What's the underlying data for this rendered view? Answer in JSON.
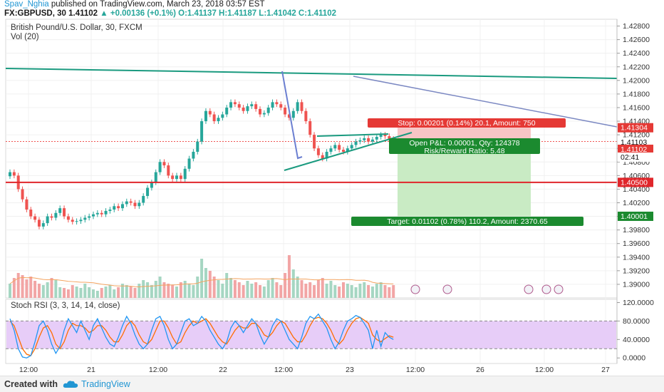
{
  "header": {
    "author": "Spav_Nghia",
    "published": "published on TradingView.com, March 23, 2018 03:57 EST",
    "symbol": "FX:GBPUSD, 30",
    "last": "1.41102",
    "change": "+0.00136 (+0.1%)",
    "ohlc": "O:1.41137 H:1.41187 L:1.41042 C:1.41102"
  },
  "legend": {
    "title": "British Pound/U.S. Dollar, 30, FXCM",
    "volume": "Vol (20)",
    "stoch": "Stoch RSI (3, 3, 14, 14, close)"
  },
  "footer": {
    "created": "Created with",
    "brand": "TradingView"
  },
  "colors": {
    "up": "#26a69a",
    "down": "#ef5350",
    "trend": "#1a9a7f",
    "support": "#e0262b",
    "stoch_fill": "#e7cdf8",
    "k_line": "#2196f3",
    "d_line": "#ff6d00",
    "profit_zone": "#c9ebc4",
    "stop_zone": "#f7c5c5",
    "vol_ma": "#f4a460"
  },
  "chart_data": [
    {
      "type": "candlestick",
      "title": "British Pound/U.S. Dollar, 30, FXCM",
      "ylim": [
        1.388,
        1.429
      ],
      "y_ticks": [
        "1.42800",
        "1.42600",
        "1.42400",
        "1.42200",
        "1.42000",
        "1.41800",
        "1.41600",
        "1.41400",
        "1.41200",
        "1.41000",
        "1.40800",
        "1.40600",
        "1.40400",
        "1.40200",
        "1.40000",
        "1.39800",
        "1.39600",
        "1.39400",
        "1.39200",
        "1.39000"
      ],
      "x_ticks": [
        "12:00",
        "21",
        "12:00",
        "22",
        "12:00",
        "23",
        "12:00",
        "26",
        "12:00",
        "27"
      ],
      "closes": [
        1.4065,
        1.406,
        1.404,
        1.4025,
        1.401,
        1.4,
        1.3995,
        1.3985,
        1.399,
        1.4,
        1.3998,
        1.4005,
        1.4012,
        1.4,
        1.3995,
        1.3992,
        1.3993,
        1.3995,
        1.3998,
        1.4,
        1.4003,
        1.4005,
        1.4003,
        1.4008,
        1.401,
        1.4015,
        1.4012,
        1.4018,
        1.4022,
        1.402,
        1.4015,
        1.402,
        1.403,
        1.4042,
        1.405,
        1.4065,
        1.408,
        1.4075,
        1.406,
        1.4055,
        1.406,
        1.4055,
        1.407,
        1.4085,
        1.4095,
        1.411,
        1.414,
        1.4155,
        1.415,
        1.414,
        1.4145,
        1.415,
        1.416,
        1.4168,
        1.4165,
        1.416,
        1.4155,
        1.4162,
        1.4165,
        1.4158,
        1.415,
        1.4152,
        1.416,
        1.4168,
        1.4165,
        1.416,
        1.415,
        1.4145,
        1.4155,
        1.4168,
        1.4155,
        1.414,
        1.412,
        1.41,
        1.409,
        1.4085,
        1.4095,
        1.41,
        1.4105,
        1.4098,
        1.4095,
        1.41,
        1.4105,
        1.411,
        1.4112,
        1.4115,
        1.411,
        1.4113,
        1.4117,
        1.412,
        1.4118,
        1.4114,
        1.411
      ],
      "annotations": {
        "stop": "Stop: 0.00201 (0.14%) 20.1, Amount: 750",
        "open": "Open P&L: 0.00001, Qty: 124378",
        "rr": "Risk/Reward Ratio: 5.48",
        "target": "Target: 0.01102 (0.78%) 110.2, Amount: 2370.65",
        "price_stop": "1.41304",
        "price_last": "1.41103",
        "price_entry": "1.41102",
        "countdown": "02:41",
        "price_support": "1.40500",
        "price_target": "1.40001",
        "stop_price": 1.41304,
        "entry_price": 1.41102,
        "support_price": 1.405,
        "target_price": 1.40001
      }
    },
    {
      "type": "bar",
      "title": "Vol (20)",
      "volumes": [
        20,
        28,
        35,
        32,
        26,
        30,
        24,
        20,
        18,
        22,
        28,
        25,
        15,
        14,
        12,
        18,
        16,
        14,
        20,
        15,
        12,
        10,
        14,
        16,
        18,
        12,
        15,
        20,
        18,
        16,
        14,
        20,
        25,
        22,
        18,
        24,
        30,
        22,
        20,
        18,
        16,
        22,
        24,
        20,
        18,
        30,
        55,
        42,
        38,
        30,
        25,
        20,
        35,
        28,
        25,
        22,
        18,
        24,
        20,
        22,
        18,
        16,
        25,
        28,
        22,
        18,
        35,
        60,
        40,
        30,
        25,
        20,
        22,
        18,
        25,
        28,
        20,
        24,
        18,
        16,
        22,
        20,
        18,
        15,
        20,
        22,
        18,
        16,
        20,
        22,
        18,
        15,
        18
      ]
    },
    {
      "type": "line",
      "title": "Stoch RSI (3, 3, 14, 14, close)",
      "ylim": [
        -12,
        127
      ],
      "y_ticks": [
        "120.0000",
        "80.0000",
        "40.0000",
        "0.0000"
      ],
      "bands": [
        20,
        80
      ],
      "series": [
        {
          "name": "K",
          "values": [
            85,
            60,
            20,
            2,
            0,
            5,
            35,
            70,
            80,
            60,
            30,
            10,
            25,
            60,
            85,
            70,
            55,
            80,
            60,
            40,
            70,
            85,
            65,
            45,
            30,
            25,
            45,
            70,
            90,
            75,
            50,
            30,
            20,
            30,
            60,
            85,
            90,
            70,
            40,
            20,
            30,
            55,
            80,
            85,
            70,
            75,
            90,
            80,
            60,
            45,
            30,
            20,
            35,
            65,
            80,
            70,
            55,
            70,
            85,
            75,
            50,
            30,
            45,
            70,
            85,
            80,
            60,
            40,
            30,
            20,
            45,
            75,
            90,
            85,
            95,
            80,
            65,
            40,
            20,
            35,
            60,
            80,
            85,
            92,
            88,
            75,
            60,
            20,
            60,
            25,
            55,
            45,
            40
          ]
        },
        {
          "name": "D",
          "values": [
            80,
            70,
            45,
            20,
            8,
            5,
            20,
            45,
            65,
            70,
            55,
            30,
            20,
            35,
            60,
            75,
            70,
            70,
            65,
            55,
            60,
            70,
            70,
            60,
            45,
            35,
            35,
            50,
            70,
            80,
            70,
            50,
            35,
            30,
            40,
            60,
            80,
            80,
            65,
            45,
            30,
            35,
            55,
            70,
            80,
            75,
            80,
            85,
            75,
            60,
            45,
            35,
            30,
            45,
            60,
            70,
            65,
            65,
            75,
            75,
            65,
            50,
            45,
            55,
            70,
            80,
            75,
            60,
            45,
            35,
            35,
            50,
            70,
            85,
            88,
            85,
            75,
            60,
            40,
            30,
            40,
            60,
            75,
            85,
            88,
            82,
            75,
            50,
            40,
            35,
            42,
            48,
            45
          ]
        }
      ]
    }
  ]
}
